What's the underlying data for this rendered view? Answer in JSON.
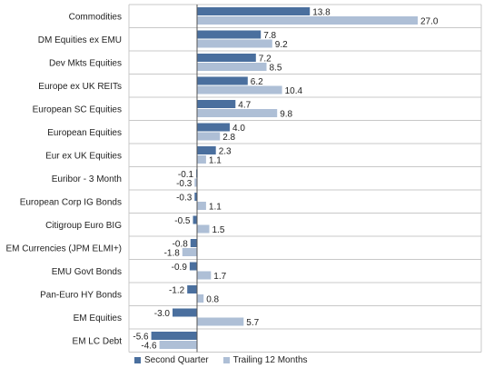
{
  "colors": {
    "series1": "#4a6f9e",
    "series2": "#aebfd6",
    "grid": "#c8c8c8",
    "axis": "#555555"
  },
  "chart_data": {
    "type": "bar",
    "orientation": "horizontal",
    "categories": [
      "Commodities",
      "DM Equities ex EMU",
      "Dev Mkts Equities",
      "Europe ex UK REITs",
      "European SC Equities",
      "European Equities",
      "Eur ex UK Equities",
      "Euribor - 3 Month",
      "European Corp IG Bonds",
      "Citigroup Euro BIG",
      "EM Currencies (JPM ELMI+)",
      "EMU Govt Bonds",
      "Pan-Euro HY Bonds",
      "EM Equities",
      "EM LC Debt"
    ],
    "series": [
      {
        "name": "Second Quarter",
        "values": [
          13.8,
          7.8,
          7.2,
          6.2,
          4.7,
          4.0,
          2.3,
          -0.1,
          -0.3,
          -0.5,
          -0.8,
          -0.9,
          -1.2,
          -3.0,
          -5.6
        ]
      },
      {
        "name": "Trailing 12 Months",
        "values": [
          27.0,
          9.2,
          8.5,
          10.4,
          9.8,
          2.8,
          1.1,
          -0.3,
          1.1,
          1.5,
          -1.8,
          1.7,
          0.8,
          5.7,
          -4.6
        ]
      }
    ],
    "xlim": [
      -6,
      31
    ],
    "legend_position": "bottom",
    "grid": "horizontal separators"
  }
}
